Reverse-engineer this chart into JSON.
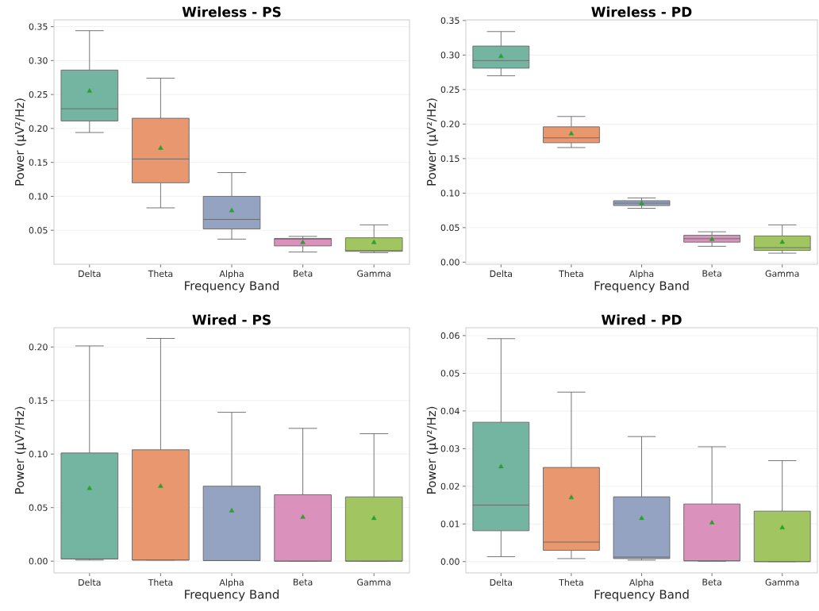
{
  "chart_data": [
    {
      "type": "box",
      "title": "Wireless - PS",
      "xlabel": "Frequency Band",
      "ylabel": "Power (µV²/Hz)",
      "categories": [
        "Delta",
        "Theta",
        "Alpha",
        "Beta",
        "Gamma"
      ],
      "colors": [
        "#73b5a0",
        "#e8976f",
        "#94a3c1",
        "#da92bd",
        "#a1c561"
      ],
      "grid": "y",
      "ylim": [
        0.0,
        0.36
      ],
      "yticks": [
        {
          "value": 0.05,
          "label": "0.05"
        },
        {
          "value": 0.1,
          "label": "0.10"
        },
        {
          "value": 0.15,
          "label": "0.15"
        },
        {
          "value": 0.2,
          "label": "0.20"
        },
        {
          "value": 0.25,
          "label": "0.25"
        },
        {
          "value": 0.3,
          "label": "0.30"
        },
        {
          "value": 0.35,
          "label": "0.35"
        }
      ],
      "boxes": [
        {
          "low": 0.194,
          "q1": 0.211,
          "median": 0.229,
          "q3": 0.286,
          "high": 0.344,
          "mean": 0.255
        },
        {
          "low": 0.083,
          "q1": 0.12,
          "median": 0.155,
          "q3": 0.215,
          "high": 0.274,
          "mean": 0.171
        },
        {
          "low": 0.037,
          "q1": 0.052,
          "median": 0.066,
          "q3": 0.1,
          "high": 0.135,
          "mean": 0.079
        },
        {
          "low": 0.018,
          "q1": 0.027,
          "median": 0.037,
          "q3": 0.038,
          "high": 0.041,
          "mean": 0.032
        },
        {
          "low": 0.017,
          "q1": 0.019,
          "median": 0.02,
          "q3": 0.039,
          "high": 0.058,
          "mean": 0.032
        }
      ]
    },
    {
      "type": "box",
      "title": "Wireless - PD",
      "xlabel": "Frequency Band",
      "ylabel": "Power (µV²/Hz)",
      "categories": [
        "Delta",
        "Theta",
        "Alpha",
        "Beta",
        "Gamma"
      ],
      "colors": [
        "#73b5a0",
        "#e8976f",
        "#94a3c1",
        "#da92bd",
        "#a1c561"
      ],
      "grid": "y",
      "ylim": [
        -0.003,
        0.351
      ],
      "yticks": [
        {
          "value": 0,
          "label": "0.00"
        },
        {
          "value": 0.05,
          "label": "0.05"
        },
        {
          "value": 0.1,
          "label": "0.10"
        },
        {
          "value": 0.15,
          "label": "0.15"
        },
        {
          "value": 0.2,
          "label": "0.20"
        },
        {
          "value": 0.25,
          "label": "0.25"
        },
        {
          "value": 0.3,
          "label": "0.30"
        },
        {
          "value": 0.35,
          "label": "0.35"
        }
      ],
      "boxes": [
        {
          "low": 0.27,
          "q1": 0.281,
          "median": 0.292,
          "q3": 0.313,
          "high": 0.334,
          "mean": 0.298
        },
        {
          "low": 0.166,
          "q1": 0.173,
          "median": 0.18,
          "q3": 0.196,
          "high": 0.211,
          "mean": 0.186
        },
        {
          "low": 0.078,
          "q1": 0.082,
          "median": 0.0855,
          "q3": 0.089,
          "high": 0.093,
          "mean": 0.085
        },
        {
          "low": 0.023,
          "q1": 0.029,
          "median": 0.034,
          "q3": 0.039,
          "high": 0.044,
          "mean": 0.033
        },
        {
          "low": 0.013,
          "q1": 0.017,
          "median": 0.021,
          "q3": 0.038,
          "high": 0.054,
          "mean": 0.029
        }
      ]
    },
    {
      "type": "box",
      "title": "Wired - PS",
      "xlabel": "Frequency Band",
      "ylabel": "Power (µV²/Hz)",
      "categories": [
        "Delta",
        "Theta",
        "Alpha",
        "Beta",
        "Gamma"
      ],
      "colors": [
        "#73b5a0",
        "#e8976f",
        "#94a3c1",
        "#da92bd",
        "#a1c561"
      ],
      "grid": "y",
      "ylim": [
        -0.011,
        0.218
      ],
      "yticks": [
        {
          "value": 0,
          "label": "0.00"
        },
        {
          "value": 0.05,
          "label": "0.05"
        },
        {
          "value": 0.1,
          "label": "0.10"
        },
        {
          "value": 0.15,
          "label": "0.15"
        },
        {
          "value": 0.2,
          "label": "0.20"
        }
      ],
      "boxes": [
        {
          "low": 0.001,
          "q1": 0.002,
          "median": 0.002,
          "q3": 0.101,
          "high": 0.201,
          "mean": 0.068
        },
        {
          "low": 0.001,
          "q1": 0.001,
          "median": 0.001,
          "q3": 0.104,
          "high": 0.208,
          "mean": 0.07
        },
        {
          "low": 0.0005,
          "q1": 0.0005,
          "median": 0.0005,
          "q3": 0.07,
          "high": 0.139,
          "mean": 0.047
        },
        {
          "low": 0.0,
          "q1": 0.0,
          "median": 0.0,
          "q3": 0.062,
          "high": 0.124,
          "mean": 0.041
        },
        {
          "low": 0.0,
          "q1": 0.0,
          "median": 0.0,
          "q3": 0.06,
          "high": 0.119,
          "mean": 0.04
        }
      ]
    },
    {
      "type": "box",
      "title": "Wired - PD",
      "xlabel": "Frequency Band",
      "ylabel": "Power (µV²/Hz)",
      "categories": [
        "Delta",
        "Theta",
        "Alpha",
        "Beta",
        "Gamma"
      ],
      "colors": [
        "#73b5a0",
        "#e8976f",
        "#94a3c1",
        "#da92bd",
        "#a1c561"
      ],
      "grid": "y",
      "ylim": [
        -0.003,
        0.0621
      ],
      "yticks": [
        {
          "value": 0,
          "label": "0.00"
        },
        {
          "value": 0.01,
          "label": "0.01"
        },
        {
          "value": 0.02,
          "label": "0.02"
        },
        {
          "value": 0.03,
          "label": "0.03"
        },
        {
          "value": 0.04,
          "label": "0.04"
        },
        {
          "value": 0.05,
          "label": "0.05"
        },
        {
          "value": 0.06,
          "label": "0.06"
        }
      ],
      "boxes": [
        {
          "low": 0.0013,
          "q1": 0.0082,
          "median": 0.015,
          "q3": 0.037,
          "high": 0.0592,
          "mean": 0.0252
        },
        {
          "low": 0.0008,
          "q1": 0.003,
          "median": 0.0052,
          "q3": 0.025,
          "high": 0.045,
          "mean": 0.017
        },
        {
          "low": 0.0004,
          "q1": 0.0008,
          "median": 0.0012,
          "q3": 0.0172,
          "high": 0.0332,
          "mean": 0.0115
        },
        {
          "low": 0.0001,
          "q1": 0.0002,
          "median": 0.0002,
          "q3": 0.0153,
          "high": 0.0305,
          "mean": 0.0103
        },
        {
          "low": 0.0,
          "q1": 0.0,
          "median": 0.0,
          "q3": 0.0134,
          "high": 0.0268,
          "mean": 0.009
        }
      ]
    }
  ]
}
